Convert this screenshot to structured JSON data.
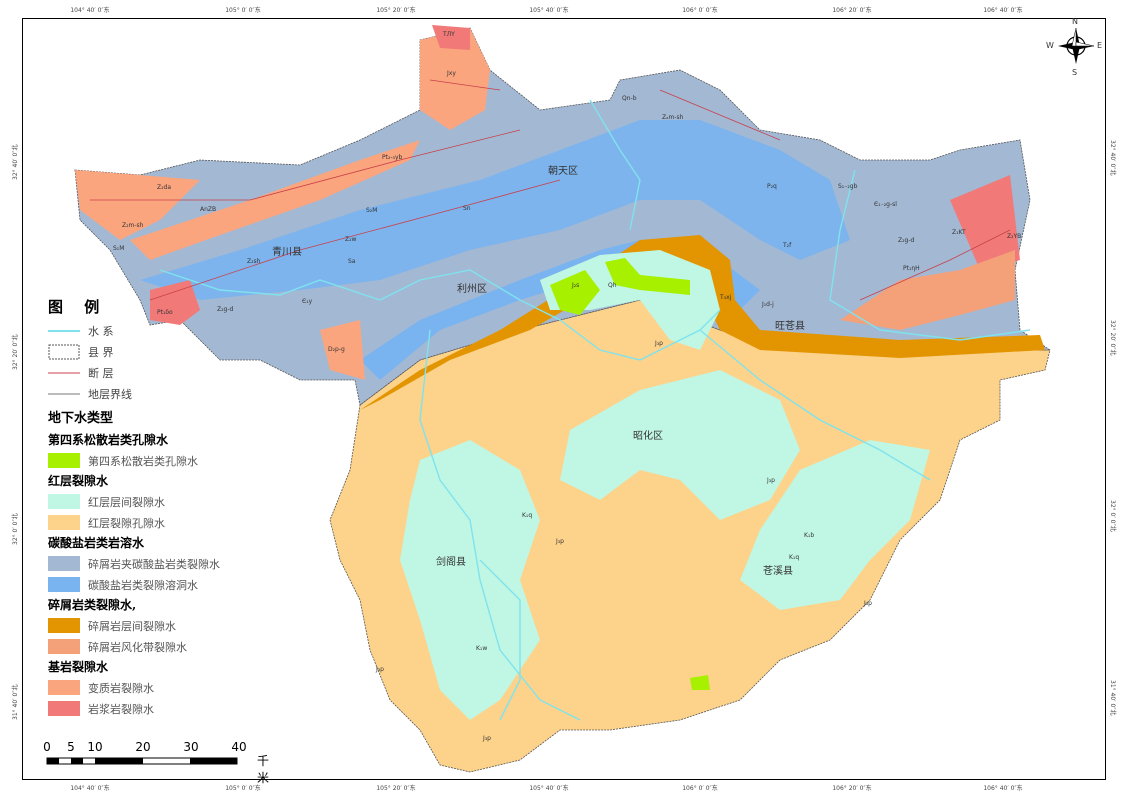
{
  "coords": {
    "top": [
      "104° 40′ 0″东",
      "105° 0′ 0″东",
      "105° 20′ 0″东",
      "105° 40′ 0″东",
      "106° 0′ 0″东",
      "106° 20′ 0″东",
      "106° 40′ 0″东"
    ],
    "bottom": [
      "104° 40′ 0″东",
      "105° 0′ 0″东",
      "105° 20′ 0″东",
      "105° 40′ 0″东",
      "106° 0′ 0″东",
      "106° 20′ 0″东",
      "106° 40′ 0″东"
    ],
    "left": [
      "32° 40′ 0″北",
      "32° 20′ 0″北",
      "32° 0′ 0″北",
      "31° 40′ 0″北"
    ],
    "right": [
      "32° 40′ 0″北",
      "32° 20′ 0″北",
      "32° 0′ 0″北",
      "31° 40′ 0″北"
    ]
  },
  "compass": {
    "n": "N",
    "s": "S",
    "e": "E",
    "w": "W"
  },
  "districts": [
    "青川县",
    "朝天区",
    "利州区",
    "旺苍县",
    "昭化区",
    "剑阁县",
    "苍溪县"
  ],
  "codes": [
    "TЛY",
    "Jxy",
    "Pt₂-₃yb",
    "Qn-b",
    "Zₐm-sh",
    "Z₂da",
    "AnZB",
    "Z₂m-sh",
    "S₁M",
    "S₂M",
    "Sn",
    "Z₂w",
    "Z₂sh",
    "Sa",
    "Z₂g-d",
    "Pt₁δo",
    "Є₁y",
    "D₂p-g",
    "P₂q",
    "S₁₋₂gb",
    "Є₁₋₂g-sl",
    "Z₂g-d",
    "Z₁KT",
    "Z₂YB",
    "Pt₁ηH",
    "T₂f",
    "T₃xj",
    "J₁d-j",
    "J₂s",
    "Qh",
    "J₃p",
    "J₃p",
    "K₁q",
    "J₃p",
    "K₁b",
    "K₁q",
    "K₁w",
    "J₃p",
    "J₃p",
    "J₃p"
  ],
  "legend": {
    "title": "图  例",
    "lines": [
      {
        "label": "水  系",
        "color": "#7fe3ee"
      },
      {
        "label": "县  界",
        "color": "#555555"
      },
      {
        "label": "断  层",
        "color": "#c8404a"
      },
      {
        "label": "地层界线",
        "color": "#777777"
      }
    ],
    "heading": "地下水类型",
    "groups": [
      {
        "title": "第四系松散岩类孔隙水",
        "items": [
          {
            "label": "第四系松散岩类孔隙水",
            "color": "#a6f000"
          }
        ]
      },
      {
        "title": "红层裂隙水",
        "items": [
          {
            "label": "红层层间裂隙水",
            "color": "#c0f7e4"
          },
          {
            "label": "红层裂隙孔隙水",
            "color": "#fdd28a"
          }
        ]
      },
      {
        "title": "碳酸盐岩类岩溶水",
        "items": [
          {
            "label": "碎屑岩夹碳酸盐岩类裂隙水",
            "color": "#a3b8d3"
          },
          {
            "label": "碳酸盐岩类裂隙溶洞水",
            "color": "#79b4f0"
          }
        ]
      },
      {
        "title": "碎屑岩类裂隙水,",
        "items": [
          {
            "label": "碎屑岩层间裂隙水",
            "color": "#e29500"
          },
          {
            "label": "碎屑岩风化带裂隙水",
            "color": "#f4a17a"
          }
        ]
      },
      {
        "title": "基岩裂隙水",
        "items": [
          {
            "label": "变质岩裂隙水",
            "color": "#fba57f"
          },
          {
            "label": "岩浆岩裂隙水",
            "color": "#f17a78"
          }
        ]
      }
    ]
  },
  "scale": {
    "ticks": [
      "0",
      "5",
      "10",
      "20",
      "30",
      "40"
    ],
    "unit": "千米"
  }
}
